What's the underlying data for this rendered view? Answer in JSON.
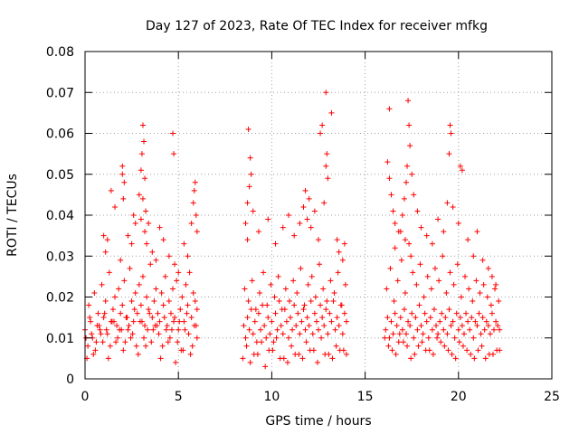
{
  "chart_data": {
    "type": "scatter",
    "title": "Day 127 of 2023, Rate Of TEC Index for receiver mfkg",
    "xlabel": "GPS time / hours",
    "ylabel": "ROTI / TECUs",
    "xlim": [
      0,
      25
    ],
    "ylim": [
      0,
      0.08
    ],
    "grid": true,
    "x_ticks": [
      0,
      5,
      10,
      15,
      20,
      25
    ],
    "x_tick_labels": [
      "0",
      "5",
      "10",
      "15",
      "20",
      "25"
    ],
    "y_ticks": [
      0,
      0.01,
      0.02,
      0.03,
      0.04,
      0.05,
      0.06,
      0.07,
      0.08
    ],
    "y_tick_labels": [
      "0",
      "0.01",
      "0.02",
      "0.03",
      "0.04",
      "0.05",
      "0.06",
      "0.07",
      "0.08"
    ],
    "marker": "+",
    "color": "#ff0000",
    "series": [
      {
        "name": "ROTI",
        "x": [
          0.0,
          0.1,
          0.2,
          0.3,
          0.4,
          0.5,
          0.6,
          0.7,
          0.8,
          0.9,
          1.0,
          1.1,
          1.2,
          1.3,
          1.4,
          1.5,
          1.6,
          1.7,
          1.8,
          1.9,
          2.0,
          2.1,
          2.2,
          2.3,
          2.4,
          2.5,
          2.6,
          2.7,
          2.8,
          2.9,
          3.0,
          3.1,
          3.2,
          3.3,
          3.4,
          3.5,
          3.6,
          3.7,
          3.8,
          3.9,
          4.0,
          4.1,
          4.2,
          4.3,
          4.4,
          4.5,
          4.6,
          4.7,
          4.8,
          4.9,
          5.0,
          5.1,
          5.2,
          5.3,
          5.4,
          5.5,
          5.6,
          5.7,
          5.8,
          5.9,
          6.0,
          0.15,
          0.35,
          0.55,
          0.75,
          0.95,
          1.15,
          1.35,
          1.55,
          1.75,
          1.95,
          2.15,
          2.35,
          2.55,
          2.75,
          2.95,
          3.15,
          3.35,
          3.55,
          3.75,
          3.95,
          4.15,
          4.35,
          4.55,
          4.75,
          4.95,
          5.15,
          5.35,
          5.55,
          5.75,
          5.95,
          0.25,
          0.65,
          1.05,
          1.45,
          1.85,
          2.25,
          2.65,
          3.05,
          3.45,
          3.85,
          4.25,
          4.65,
          5.05,
          5.45,
          5.85,
          0.05,
          0.45,
          0.85,
          1.25,
          1.65,
          2.05,
          2.45,
          2.85,
          3.25,
          3.65,
          4.05,
          4.45,
          4.85,
          5.25,
          5.65,
          6.0,
          1.1,
          1.2,
          1.4,
          1.6,
          1.9,
          2.0,
          2.1,
          2.3,
          2.5,
          2.7,
          2.9,
          3.0,
          3.05,
          3.1,
          3.15,
          3.2,
          3.0,
          3.1,
          3.2,
          3.25,
          3.3,
          3.4,
          3.6,
          3.8,
          4.0,
          4.2,
          4.5,
          4.8,
          4.7,
          4.75,
          5.0,
          5.3,
          5.5,
          5.7,
          5.8,
          5.9,
          5.95,
          6.0,
          5.85,
          2.0,
          2.05,
          2.6,
          1.0,
          8.5,
          8.6,
          8.7,
          8.8,
          8.9,
          9.0,
          9.1,
          9.2,
          9.3,
          9.4,
          9.5,
          9.6,
          9.7,
          9.8,
          9.9,
          10.0,
          10.1,
          10.2,
          10.3,
          10.4,
          10.5,
          10.6,
          10.7,
          10.8,
          10.9,
          11.0,
          11.1,
          11.2,
          11.3,
          11.4,
          11.5,
          11.6,
          11.7,
          11.8,
          11.9,
          12.0,
          12.1,
          12.2,
          12.3,
          12.4,
          12.5,
          12.6,
          12.7,
          12.8,
          12.9,
          13.0,
          13.1,
          13.2,
          13.3,
          13.4,
          13.5,
          13.6,
          13.7,
          13.8,
          13.9,
          14.0,
          8.55,
          8.75,
          8.95,
          9.15,
          9.35,
          9.55,
          9.75,
          9.95,
          10.15,
          10.35,
          10.55,
          10.75,
          10.95,
          11.15,
          11.35,
          11.55,
          11.75,
          11.95,
          12.15,
          12.35,
          12.55,
          12.75,
          12.95,
          13.15,
          13.35,
          13.55,
          13.75,
          13.95,
          8.65,
          9.05,
          9.45,
          9.85,
          10.25,
          10.65,
          11.05,
          11.45,
          11.85,
          12.25,
          12.65,
          13.05,
          13.45,
          13.85,
          8.45,
          8.85,
          9.25,
          9.65,
          10.05,
          10.45,
          10.85,
          11.25,
          11.65,
          12.05,
          12.45,
          12.85,
          13.25,
          13.65,
          14.0,
          8.6,
          8.7,
          8.75,
          8.8,
          8.85,
          8.9,
          8.7,
          9.0,
          9.3,
          9.8,
          10.2,
          10.6,
          10.9,
          11.2,
          11.5,
          11.7,
          11.8,
          11.9,
          12.0,
          12.1,
          12.3,
          12.5,
          12.8,
          12.9,
          12.95,
          13.0,
          12.9,
          13.2,
          13.5,
          13.6,
          13.8,
          13.9,
          12.6,
          12.7,
          16.1,
          16.2,
          16.3,
          16.4,
          16.5,
          16.6,
          16.7,
          16.8,
          16.9,
          17.0,
          17.1,
          17.2,
          17.3,
          17.4,
          17.5,
          17.6,
          17.7,
          17.8,
          17.9,
          18.0,
          18.1,
          18.2,
          18.3,
          18.4,
          18.5,
          18.6,
          18.7,
          18.8,
          18.9,
          19.0,
          19.1,
          19.2,
          19.3,
          19.4,
          19.5,
          19.6,
          19.7,
          19.8,
          19.9,
          20.0,
          20.1,
          20.2,
          20.3,
          20.4,
          20.5,
          20.6,
          20.7,
          20.8,
          20.9,
          21.0,
          21.1,
          21.2,
          21.3,
          21.4,
          21.5,
          21.6,
          21.7,
          21.8,
          21.9,
          22.0,
          22.1,
          22.2,
          16.15,
          16.35,
          16.55,
          16.75,
          16.95,
          17.15,
          17.35,
          17.55,
          17.75,
          17.95,
          18.15,
          18.35,
          18.55,
          18.75,
          18.95,
          19.15,
          19.35,
          19.55,
          19.75,
          19.95,
          20.15,
          20.35,
          20.55,
          20.75,
          20.95,
          21.15,
          21.35,
          21.55,
          21.75,
          21.95,
          22.15,
          16.25,
          16.65,
          17.05,
          17.45,
          17.85,
          18.25,
          18.65,
          19.05,
          19.45,
          19.85,
          20.25,
          20.65,
          21.05,
          21.45,
          21.85,
          22.2,
          16.05,
          16.45,
          16.85,
          17.25,
          17.65,
          18.05,
          18.45,
          18.85,
          19.25,
          19.65,
          20.05,
          20.45,
          20.85,
          21.25,
          21.65,
          22.05,
          16.2,
          16.3,
          16.4,
          16.5,
          16.6,
          16.3,
          16.8,
          17.0,
          17.1,
          17.2,
          17.25,
          17.3,
          17.35,
          17.4,
          17.5,
          17.6,
          17.8,
          18.0,
          18.3,
          18.6,
          18.9,
          19.2,
          19.4,
          19.5,
          19.6,
          19.55,
          19.7,
          20.0,
          20.1,
          20.2,
          20.5,
          20.8,
          21.0,
          21.3,
          21.6,
          21.8,
          22.0,
          16.6,
          16.9,
          17.15,
          17.45
        ],
        "y": [
          0.012,
          0.005,
          0.018,
          0.014,
          0.01,
          0.021,
          0.009,
          0.016,
          0.012,
          0.023,
          0.015,
          0.019,
          0.011,
          0.026,
          0.014,
          0.017,
          0.02,
          0.013,
          0.022,
          0.016,
          0.018,
          0.024,
          0.015,
          0.012,
          0.027,
          0.019,
          0.014,
          0.021,
          0.016,
          0.023,
          0.018,
          0.025,
          0.013,
          0.02,
          0.017,
          0.028,
          0.015,
          0.019,
          0.022,
          0.016,
          0.014,
          0.021,
          0.018,
          0.025,
          0.013,
          0.019,
          0.016,
          0.022,
          0.015,
          0.024,
          0.012,
          0.017,
          0.02,
          0.014,
          0.023,
          0.018,
          0.026,
          0.015,
          0.021,
          0.019,
          0.017,
          0.008,
          0.011,
          0.007,
          0.013,
          0.009,
          0.012,
          0.008,
          0.014,
          0.01,
          0.012,
          0.009,
          0.013,
          0.011,
          0.008,
          0.014,
          0.01,
          0.012,
          0.009,
          0.013,
          0.011,
          0.008,
          0.012,
          0.01,
          0.014,
          0.009,
          0.007,
          0.012,
          0.011,
          0.008,
          0.013,
          0.015,
          0.013,
          0.016,
          0.014,
          0.012,
          0.015,
          0.017,
          0.014,
          0.016,
          0.013,
          0.015,
          0.012,
          0.014,
          0.016,
          0.013,
          0.01,
          0.006,
          0.011,
          0.005,
          0.009,
          0.007,
          0.01,
          0.006,
          0.008,
          0.012,
          0.005,
          0.009,
          0.004,
          0.007,
          0.006,
          0.01,
          0.031,
          0.034,
          0.046,
          0.042,
          0.029,
          0.052,
          0.048,
          0.035,
          0.033,
          0.038,
          0.045,
          0.051,
          0.055,
          0.062,
          0.058,
          0.049,
          0.039,
          0.044,
          0.036,
          0.041,
          0.033,
          0.038,
          0.031,
          0.029,
          0.037,
          0.034,
          0.03,
          0.028,
          0.06,
          0.055,
          0.026,
          0.033,
          0.03,
          0.038,
          0.043,
          0.048,
          0.04,
          0.036,
          0.046,
          0.05,
          0.044,
          0.04,
          0.035,
          0.013,
          0.01,
          0.015,
          0.012,
          0.017,
          0.011,
          0.014,
          0.009,
          0.016,
          0.012,
          0.018,
          0.013,
          0.01,
          0.015,
          0.011,
          0.014,
          0.009,
          0.016,
          0.012,
          0.019,
          0.013,
          0.011,
          0.017,
          0.014,
          0.01,
          0.015,
          0.012,
          0.018,
          0.013,
          0.016,
          0.011,
          0.014,
          0.017,
          0.012,
          0.015,
          0.013,
          0.019,
          0.011,
          0.016,
          0.014,
          0.012,
          0.018,
          0.015,
          0.013,
          0.017,
          0.011,
          0.016,
          0.014,
          0.019,
          0.012,
          0.015,
          0.013,
          0.018,
          0.011,
          0.016,
          0.014,
          0.022,
          0.019,
          0.024,
          0.017,
          0.021,
          0.026,
          0.018,
          0.023,
          0.02,
          0.025,
          0.017,
          0.022,
          0.019,
          0.024,
          0.021,
          0.027,
          0.018,
          0.023,
          0.025,
          0.02,
          0.028,
          0.022,
          0.019,
          0.024,
          0.021,
          0.026,
          0.018,
          0.023,
          0.008,
          0.006,
          0.009,
          0.007,
          0.01,
          0.005,
          0.008,
          0.006,
          0.009,
          0.007,
          0.01,
          0.006,
          0.008,
          0.007,
          0.005,
          0.004,
          0.006,
          0.003,
          0.007,
          0.005,
          0.004,
          0.006,
          0.005,
          0.007,
          0.004,
          0.006,
          0.005,
          0.007,
          0.006,
          0.038,
          0.043,
          0.061,
          0.047,
          0.054,
          0.05,
          0.034,
          0.041,
          0.036,
          0.039,
          0.033,
          0.037,
          0.04,
          0.035,
          0.038,
          0.042,
          0.046,
          0.039,
          0.044,
          0.037,
          0.041,
          0.034,
          0.043,
          0.052,
          0.055,
          0.049,
          0.07,
          0.065,
          0.034,
          0.031,
          0.029,
          0.033,
          0.06,
          0.062,
          0.012,
          0.015,
          0.01,
          0.014,
          0.011,
          0.016,
          0.013,
          0.009,
          0.015,
          0.012,
          0.017,
          0.011,
          0.014,
          0.013,
          0.016,
          0.01,
          0.015,
          0.012,
          0.018,
          0.013,
          0.011,
          0.016,
          0.014,
          0.01,
          0.015,
          0.012,
          0.017,
          0.013,
          0.011,
          0.014,
          0.016,
          0.012,
          0.015,
          0.011,
          0.017,
          0.013,
          0.014,
          0.01,
          0.016,
          0.012,
          0.015,
          0.013,
          0.011,
          0.016,
          0.014,
          0.012,
          0.015,
          0.01,
          0.014,
          0.013,
          0.016,
          0.011,
          0.015,
          0.012,
          0.014,
          0.013,
          0.011,
          0.016,
          0.012,
          0.014,
          0.013,
          0.012,
          0.022,
          0.027,
          0.019,
          0.024,
          0.029,
          0.021,
          0.033,
          0.026,
          0.023,
          0.028,
          0.02,
          0.025,
          0.022,
          0.027,
          0.024,
          0.03,
          0.021,
          0.026,
          0.023,
          0.028,
          0.02,
          0.025,
          0.022,
          0.019,
          0.024,
          0.021,
          0.023,
          0.02,
          0.018,
          0.022,
          0.019,
          0.008,
          0.006,
          0.009,
          0.005,
          0.008,
          0.007,
          0.006,
          0.009,
          0.007,
          0.005,
          0.008,
          0.006,
          0.007,
          0.005,
          0.006,
          0.007,
          0.01,
          0.007,
          0.011,
          0.008,
          0.006,
          0.009,
          0.007,
          0.01,
          0.008,
          0.006,
          0.009,
          0.007,
          0.005,
          0.008,
          0.006,
          0.007,
          0.053,
          0.049,
          0.045,
          0.041,
          0.038,
          0.066,
          0.036,
          0.04,
          0.044,
          0.048,
          0.052,
          0.068,
          0.062,
          0.057,
          0.05,
          0.045,
          0.041,
          0.037,
          0.035,
          0.033,
          0.039,
          0.036,
          0.043,
          0.055,
          0.06,
          0.062,
          0.042,
          0.038,
          0.052,
          0.051,
          0.034,
          0.03,
          0.036,
          0.029,
          0.027,
          0.025,
          0.023,
          0.032,
          0.036,
          0.034,
          0.03
        ]
      }
    ]
  }
}
